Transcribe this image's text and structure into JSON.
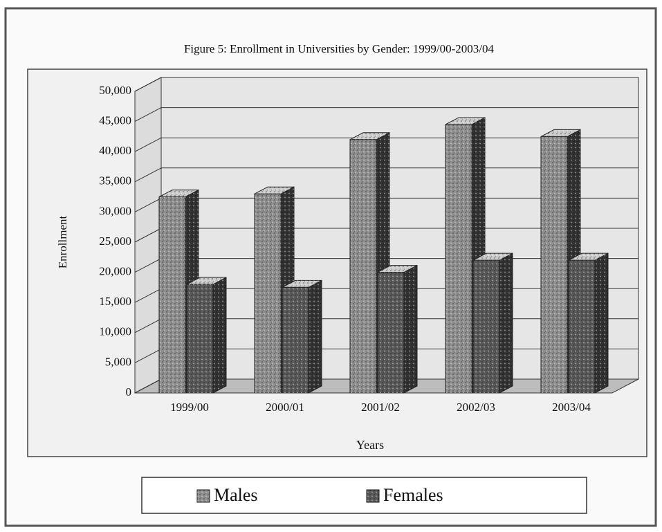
{
  "chart_data": {
    "type": "bar3d",
    "title": "Figure 5: Enrollment in Universities by Gender: 1999/00-2003/04",
    "x_label": "Years",
    "y_label": "Enrollment",
    "categories": [
      "1999/00",
      "2000/01",
      "2001/02",
      "2002/03",
      "2003/04"
    ],
    "series": [
      {
        "name": "Males",
        "color": "#8f8f8f",
        "values": [
          32500,
          33000,
          42000,
          44500,
          42500
        ]
      },
      {
        "name": "Females",
        "color": "#595959",
        "values": [
          18000,
          17500,
          20000,
          22000,
          22000
        ]
      }
    ],
    "ylim": [
      0,
      50000
    ],
    "yticks": [
      0,
      {
        "value": 5000,
        "label": "5,000"
      },
      {
        "value": 10000,
        "label": "10,000"
      },
      {
        "value": 15000,
        "label": "15,000"
      },
      {
        "value": 20000,
        "label": "20,000"
      },
      {
        "value": 25000,
        "label": "25,000"
      },
      {
        "value": 30000,
        "label": "30,000"
      },
      {
        "value": 35000,
        "label": "35,000"
      },
      {
        "value": 40000,
        "label": "40,000"
      },
      {
        "value": 45000,
        "label": "45,000"
      },
      {
        "value": 50000,
        "label": "50,000"
      }
    ],
    "grid": true,
    "legend": "bottom"
  }
}
